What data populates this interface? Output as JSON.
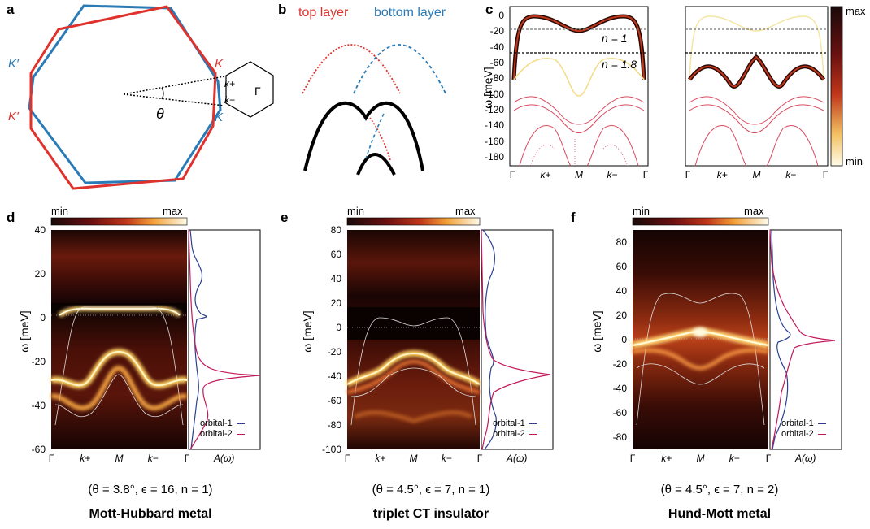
{
  "panel_labels": {
    "a": "a",
    "b": "b",
    "c": "c",
    "d": "d",
    "e": "e",
    "f": "f"
  },
  "panel_a": {
    "labels": {
      "K_prime_blue": "K′",
      "K_prime_red": "K′",
      "K_red": "K",
      "K_blue": "K",
      "k_plus": "k+",
      "k_minus": "k−",
      "gamma": "Γ",
      "theta": "θ"
    },
    "colors": {
      "red": "#e0322c",
      "blue": "#2a7ab6"
    }
  },
  "panel_b": {
    "top_layer": "top layer",
    "bottom_layer": "bottom layer"
  },
  "panel_c": {
    "ylabel": "ω [meV]",
    "yticks": [
      "0",
      "-20",
      "-40",
      "-60",
      "-80",
      "-100",
      "-120",
      "-140",
      "-160",
      "-180"
    ],
    "xticks": [
      "Γ",
      "k+",
      "M",
      "k−",
      "Γ"
    ],
    "annotations": {
      "n1": "n = 1",
      "n18": "n = 1.8"
    },
    "colorbar": {
      "max": "max",
      "min": "min"
    }
  },
  "panel_d": {
    "ylabel": "ω [meV]",
    "yticks": [
      "40",
      "20",
      "0",
      "-20",
      "-40",
      "-60"
    ],
    "xticks": [
      "Γ",
      "k+",
      "M",
      "k−",
      "Γ"
    ],
    "dos_label": "A(ω)",
    "legend": [
      "orbital-1",
      "orbital-2"
    ],
    "colorbar": {
      "min": "min",
      "max": "max"
    },
    "params": "(θ = 3.8°, ϵ = 16, n = 1)",
    "phase": "Mott-Hubbard metal"
  },
  "panel_e": {
    "ylabel": "ω [meV]",
    "yticks": [
      "80",
      "60",
      "40",
      "20",
      "0",
      "-20",
      "-40",
      "-60",
      "-80",
      "-100"
    ],
    "xticks": [
      "Γ",
      "k+",
      "M",
      "k−",
      "Γ"
    ],
    "dos_label": "A(ω)",
    "legend": [
      "orbital-1",
      "orbital-2"
    ],
    "colorbar": {
      "min": "min",
      "max": "max"
    },
    "params": "(θ = 4.5°, ϵ = 7, n = 1)",
    "phase": "triplet CT insulator"
  },
  "panel_f": {
    "ylabel": "ω [meV]",
    "yticks": [
      "80",
      "60",
      "40",
      "20",
      "0",
      "-20",
      "-40",
      "-60",
      "-80"
    ],
    "xticks": [
      "Γ",
      "k+",
      "M",
      "k−",
      "Γ"
    ],
    "dos_label": "A(ω)",
    "legend": [
      "orbital-1",
      "orbital-2"
    ],
    "colorbar": {
      "min": "min",
      "max": "max"
    },
    "params": "(θ = 4.5°, ϵ = 7, n = 2)",
    "phase": "Hund-Mott metal"
  },
  "colors": {
    "orbital1": "#2b3f8f",
    "orbital2": "#c2185b",
    "red": "#e0322c",
    "blue": "#2a7ab6"
  }
}
